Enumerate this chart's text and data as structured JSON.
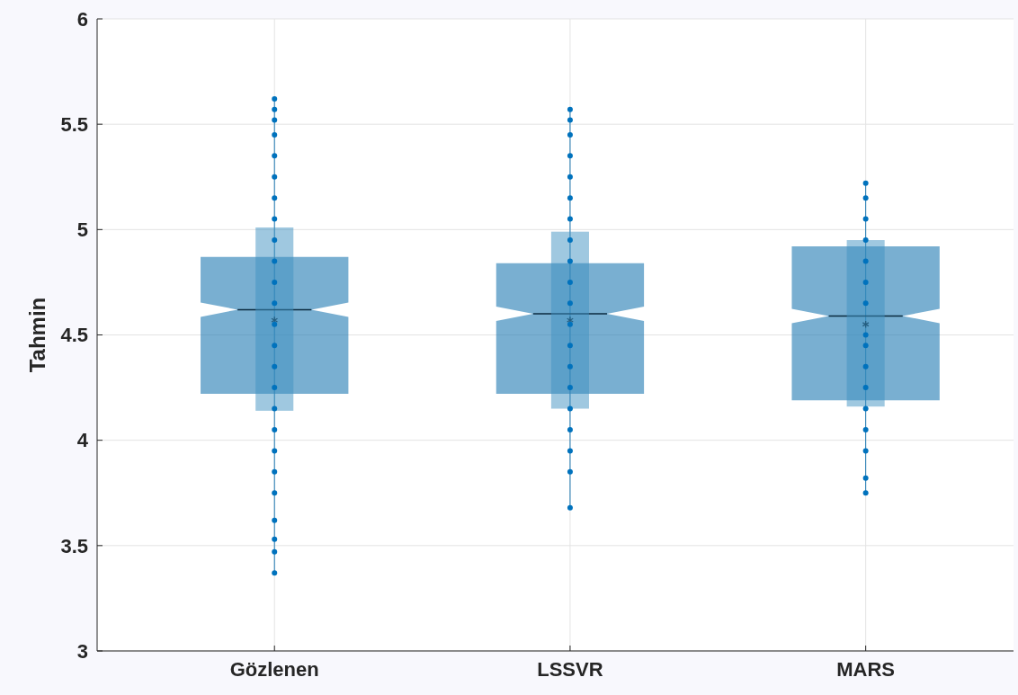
{
  "chart_data": {
    "type": "box",
    "ylabel": "Tahmin",
    "categories": [
      "Gözlenen",
      "LSSVR",
      "MARS"
    ],
    "ylim": [
      3,
      6
    ],
    "yticks": [
      3,
      3.5,
      4,
      4.5,
      5,
      5.5,
      6
    ],
    "grid": true,
    "series": [
      {
        "color": "#1f7ab3",
        "boxes": [
          {
            "low": 3.37,
            "q1": 4.22,
            "median": 4.62,
            "q3": 4.87,
            "high": 5.62,
            "mean": 4.57
          },
          {
            "low": 3.68,
            "q1": 4.22,
            "median": 4.6,
            "q3": 4.84,
            "high": 5.57,
            "mean": 4.57
          },
          {
            "low": 3.75,
            "q1": 4.19,
            "median": 4.59,
            "q3": 4.92,
            "high": 5.22,
            "mean": 4.55
          }
        ]
      },
      {
        "type": "bar",
        "color": "#3f92c2",
        "base": [
          4.14,
          4.15,
          4.16
        ],
        "values": [
          0.87,
          0.84,
          0.79
        ]
      },
      {
        "type": "scatter",
        "color": "#0072bd",
        "marker": "circle",
        "x": [
          "Gözlenen",
          "Gözlenen",
          "Gözlenen",
          "Gözlenen",
          "Gözlenen",
          "Gözlenen",
          "Gözlenen",
          "Gözlenen",
          "Gözlenen",
          "Gözlenen",
          "Gözlenen",
          "Gözlenen",
          "Gözlenen",
          "Gözlenen",
          "Gözlenen",
          "Gözlenen",
          "Gözlenen",
          "Gözlenen",
          "Gözlenen",
          "Gözlenen",
          "Gözlenen",
          "Gözlenen",
          "Gözlenen",
          "Gözlenen",
          "Gözlenen",
          "LSSVR",
          "LSSVR",
          "LSSVR",
          "LSSVR",
          "LSSVR",
          "LSSVR",
          "LSSVR",
          "LSSVR",
          "LSSVR",
          "LSSVR",
          "LSSVR",
          "LSSVR",
          "LSSVR",
          "LSSVR",
          "LSSVR",
          "LSSVR",
          "LSSVR",
          "LSSVR",
          "LSSVR",
          "LSSVR",
          "MARS",
          "MARS",
          "MARS",
          "MARS",
          "MARS",
          "MARS",
          "MARS",
          "MARS",
          "MARS",
          "MARS",
          "MARS",
          "MARS",
          "MARS",
          "MARS",
          "MARS",
          "MARS"
        ],
        "values": [
          5.62,
          5.57,
          5.52,
          5.45,
          5.35,
          5.25,
          5.15,
          5.05,
          4.95,
          4.85,
          4.75,
          4.65,
          4.55,
          4.45,
          4.35,
          4.25,
          4.15,
          4.05,
          3.95,
          3.85,
          3.75,
          3.62,
          3.53,
          3.47,
          3.37,
          5.57,
          5.52,
          5.45,
          5.35,
          5.25,
          5.15,
          5.05,
          4.95,
          4.85,
          4.75,
          4.65,
          4.55,
          4.45,
          4.35,
          4.25,
          4.15,
          4.05,
          3.95,
          3.85,
          3.68,
          5.22,
          5.15,
          5.05,
          4.95,
          4.85,
          4.75,
          4.65,
          4.5,
          4.45,
          4.35,
          4.25,
          4.15,
          4.05,
          3.95,
          3.82,
          3.75
        ]
      }
    ]
  }
}
